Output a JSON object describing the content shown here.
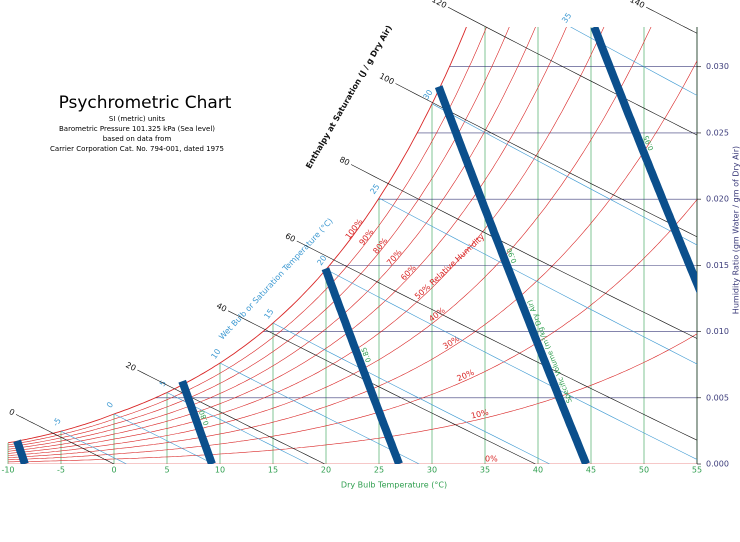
{
  "chart_data": {
    "type": "psychrometric",
    "title": "Psychrometric Chart",
    "subtitle": [
      "SI (metric) units",
      "Barometric Pressure 101.325 kPa (Sea level)",
      "based on data from",
      "Carrier Corporation Cat. No. 794-001, dated 1975"
    ],
    "pressure_kpa": 101.325,
    "x_label": "Dry Bulb Temperature (°C)",
    "y_label": "Humidity Ratio (gm Water / gm of Dry Air)",
    "xlim": [
      -10,
      55
    ],
    "xticks": [
      -10,
      -5,
      0,
      5,
      10,
      15,
      20,
      25,
      30,
      35,
      40,
      45,
      50,
      55
    ],
    "ylim": [
      0,
      0.033
    ],
    "yticks": [
      {
        "value": 0,
        "label": "0.000"
      },
      {
        "value": 0.005,
        "label": "0.005"
      },
      {
        "value": 0.01,
        "label": "0.010"
      },
      {
        "value": 0.015,
        "label": "0.015"
      },
      {
        "value": 0.02,
        "label": "0.020"
      },
      {
        "value": 0.025,
        "label": "0.025"
      },
      {
        "value": 0.03,
        "label": "0.030"
      }
    ],
    "grid": true,
    "dry_bulb_color": "#2e9e4e",
    "humidity_color": "#3b3b7a",
    "relative_humidity": {
      "color": "#d92626",
      "lines": [
        {
          "value": 100,
          "label": "100%"
        },
        {
          "value": 90,
          "label": "90%"
        },
        {
          "value": 80,
          "label": "80%"
        },
        {
          "value": 70,
          "label": "70%"
        },
        {
          "value": 60,
          "label": "60%"
        },
        {
          "value": 50,
          "label": "50% Relative Humidity"
        },
        {
          "value": 40,
          "label": "40%"
        },
        {
          "value": 30,
          "label": "30%"
        },
        {
          "value": 20,
          "label": "20%"
        },
        {
          "value": 10,
          "label": "10%"
        },
        {
          "value": 0,
          "label": "0%"
        }
      ]
    },
    "wet_bulb": {
      "title": "Wet Bulb or Saturation Temperature (°C)",
      "color": "#3f9ad2",
      "values": [
        -5,
        0,
        5,
        10,
        15,
        20,
        25,
        30,
        35
      ]
    },
    "enthalpy": {
      "title": "Enthalpy at Saturation (J / g Dry Air)",
      "color": "#111111",
      "values": [
        0,
        20,
        40,
        60,
        80,
        100,
        120,
        140
      ]
    },
    "specific_volume": {
      "title": "Specific Volume (m³/kg Dry Air)",
      "color": "#0b4f8c",
      "label_color": "#2e9e4e",
      "values": [
        0.75,
        0.8,
        0.85,
        0.9,
        0.95
      ],
      "value_labels": [
        null,
        "0.80",
        "0.85",
        "0.90",
        "0.95"
      ]
    }
  }
}
